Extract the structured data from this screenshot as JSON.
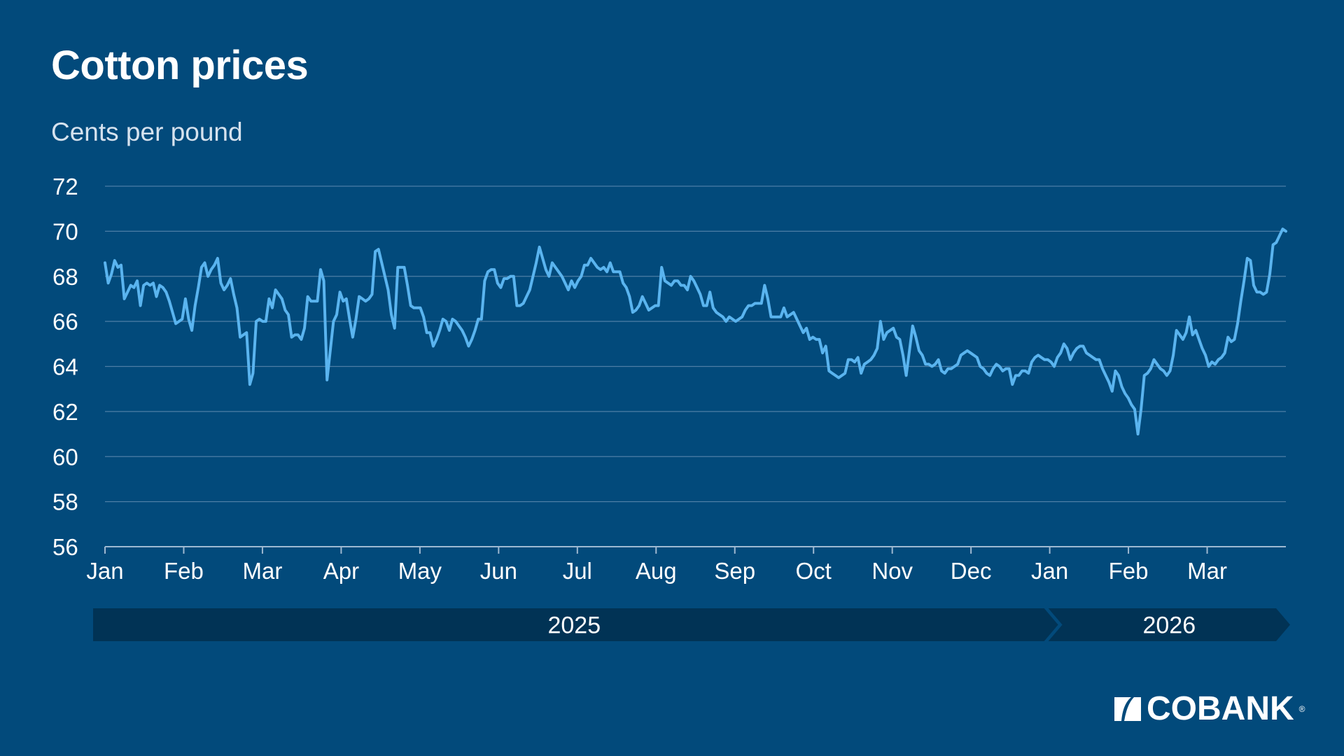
{
  "header": {
    "title": "Cotton prices",
    "subtitle": "Cents per pound"
  },
  "brand": {
    "name": "COBANK",
    "registered": "®"
  },
  "colors": {
    "background": "#024a7b",
    "line": "#5ab4ef",
    "grid": "#4d7ea6",
    "axis": "#9fb9d1",
    "year_band": "#013355"
  },
  "chart_data": {
    "type": "line",
    "title": "Cotton prices",
    "ylabel": "Cents per pound",
    "xlabel": "",
    "ylim": [
      56,
      72
    ],
    "yticks": [
      "56",
      "58",
      "60",
      "62",
      "64",
      "66",
      "68",
      "70",
      "72"
    ],
    "grid": true,
    "month_ticks": [
      "Jan",
      "Feb",
      "Mar",
      "Apr",
      "May",
      "Jun",
      "Jul",
      "Aug",
      "Sep",
      "Oct",
      "Nov",
      "Dec",
      "Jan",
      "Feb",
      "Mar"
    ],
    "years": [
      {
        "label": "2025",
        "months": 12
      },
      {
        "label": "2026",
        "months": 3
      }
    ],
    "series": [
      {
        "values": [
          68.6,
          67.7,
          68.1,
          68.7,
          68.4,
          68.5,
          67.0,
          67.3,
          67.6,
          67.5,
          67.8,
          66.7,
          67.6,
          67.7,
          67.6,
          67.7,
          67.1,
          67.6,
          67.5,
          67.3,
          66.9,
          66.4,
          65.9,
          66.0,
          66.1,
          67.0,
          66.1,
          65.6,
          66.7,
          67.5,
          68.4,
          68.6,
          68.0,
          68.3,
          68.5,
          68.8,
          67.7,
          67.4,
          67.6,
          67.9,
          67.2,
          66.6,
          65.3,
          65.4,
          65.5,
          63.2,
          63.7,
          66.0,
          66.1,
          66.0,
          66.0,
          67.0,
          66.6,
          67.4,
          67.2,
          67.0,
          66.5,
          66.3,
          65.3,
          65.4,
          65.4,
          65.2,
          65.7,
          67.1,
          66.9,
          66.9,
          66.9,
          68.3,
          67.8,
          63.4,
          64.7,
          66.0,
          66.3,
          67.3,
          66.9,
          67.0,
          66.1,
          65.3,
          66.1,
          67.1,
          67.0,
          66.9,
          67.0,
          67.2,
          69.1,
          69.2,
          68.6,
          68.0,
          67.4,
          66.3,
          65.7,
          68.4,
          68.4,
          68.4,
          67.6,
          66.7,
          66.6,
          66.6,
          66.6,
          66.2,
          65.5,
          65.5,
          64.9,
          65.2,
          65.6,
          66.1,
          66.0,
          65.6,
          66.1,
          66.0,
          65.8,
          65.6,
          65.3,
          64.9,
          65.2,
          65.6,
          66.1,
          66.1,
          67.8,
          68.2,
          68.3,
          68.3,
          67.7,
          67.5,
          67.9,
          67.9,
          68.0,
          68.0,
          66.7,
          66.7,
          66.8,
          67.1,
          67.4,
          68.0,
          68.6,
          69.3,
          68.8,
          68.3,
          68.0,
          68.6,
          68.4,
          68.2,
          68.0,
          67.7,
          67.4,
          67.8,
          67.5,
          67.8,
          68.0,
          68.5,
          68.5,
          68.8,
          68.6,
          68.4,
          68.3,
          68.4,
          68.2,
          68.6,
          68.2,
          68.2,
          68.2,
          67.7,
          67.5,
          67.1,
          66.4,
          66.5,
          66.7,
          67.1,
          66.8,
          66.5,
          66.6,
          66.7,
          66.7,
          68.4,
          67.8,
          67.7,
          67.6,
          67.8,
          67.8,
          67.6,
          67.6,
          67.4,
          68.0,
          67.8,
          67.5,
          67.2,
          66.7,
          66.7,
          67.3,
          66.6,
          66.4,
          66.3,
          66.2,
          66.0,
          66.2,
          66.1,
          66.0,
          66.1,
          66.2,
          66.5,
          66.7,
          66.7,
          66.8,
          66.8,
          66.8,
          67.6,
          67.0,
          66.2,
          66.2,
          66.2,
          66.2,
          66.6,
          66.2,
          66.3,
          66.4,
          66.1,
          65.8,
          65.5,
          65.7,
          65.2,
          65.3,
          65.2,
          65.2,
          64.6,
          64.9,
          63.8,
          63.7,
          63.6,
          63.5,
          63.6,
          63.7,
          64.3,
          64.3,
          64.2,
          64.4,
          63.7,
          64.1,
          64.2,
          64.3,
          64.5,
          64.8,
          66.0,
          65.2,
          65.5,
          65.6,
          65.7,
          65.3,
          65.2,
          64.5,
          63.6,
          64.7,
          65.8,
          65.3,
          64.7,
          64.5,
          64.1,
          64.1,
          64.0,
          64.1,
          64.3,
          63.8,
          63.7,
          63.9,
          63.9,
          64.0,
          64.1,
          64.5,
          64.6,
          64.7,
          64.6,
          64.5,
          64.4,
          64.0,
          63.9,
          63.7,
          63.6,
          63.9,
          64.1,
          64.0,
          63.8,
          63.9,
          63.9,
          63.2,
          63.6,
          63.6,
          63.8,
          63.8,
          63.7,
          64.2,
          64.4,
          64.5,
          64.4,
          64.3,
          64.3,
          64.2,
          64.0,
          64.4,
          64.6,
          65.0,
          64.8,
          64.3,
          64.6,
          64.8,
          64.9,
          64.9,
          64.6,
          64.5,
          64.4,
          64.3,
          64.3,
          63.9,
          63.6,
          63.3,
          62.9,
          63.8,
          63.6,
          63.1,
          62.8,
          62.6,
          62.3,
          62.1,
          61.0,
          62.1,
          63.6,
          63.7,
          63.9,
          64.3,
          64.1,
          63.9,
          63.8,
          63.6,
          63.8,
          64.5,
          65.6,
          65.4,
          65.2,
          65.5,
          66.2,
          65.4,
          65.6,
          65.2,
          64.8,
          64.5,
          64.0,
          64.2,
          64.1,
          64.3,
          64.4,
          64.6,
          65.3,
          65.1,
          65.2,
          65.9,
          66.9,
          67.8,
          68.8,
          68.7,
          67.6,
          67.3,
          67.3,
          67.2,
          67.3,
          68.1,
          69.4,
          69.5,
          69.8,
          70.1,
          70.0
        ]
      }
    ]
  }
}
